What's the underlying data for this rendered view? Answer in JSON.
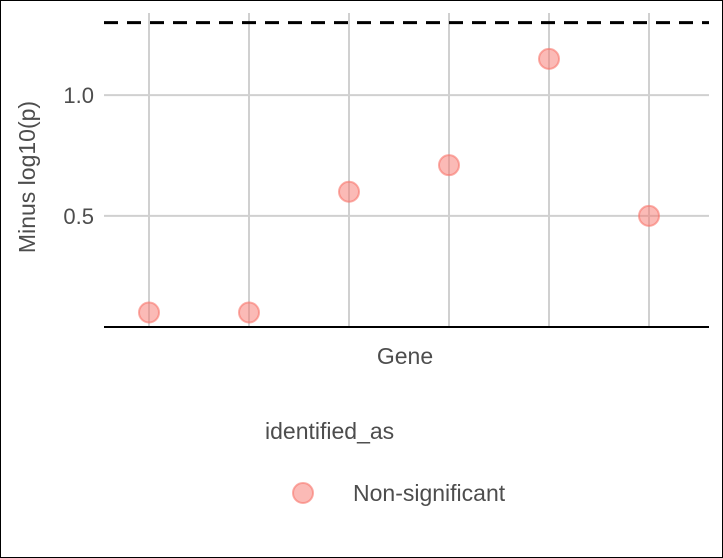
{
  "chart_data": {
    "type": "scatter",
    "xlabel": "Gene",
    "ylabel": "Minus log10(p)",
    "x": [
      1,
      2,
      3,
      4,
      5,
      6
    ],
    "series": [
      {
        "name": "Non-significant",
        "color": "#f8766d",
        "values": [
          0.1,
          0.1,
          0.6,
          0.71,
          1.15,
          0.5
        ]
      }
    ],
    "y_ticks": [
      0.5,
      1.0
    ],
    "y_tick_labels": [
      "0.5",
      "1.0"
    ],
    "ylim": [
      0.04,
      1.34
    ],
    "xlim": [
      0.55,
      6.6
    ],
    "threshold": {
      "value": 1.3,
      "style": "dashed",
      "color": "#000000"
    },
    "grid": true,
    "legend": {
      "title": "identified_as",
      "position": "bottom",
      "entries": [
        "Non-significant"
      ]
    }
  }
}
